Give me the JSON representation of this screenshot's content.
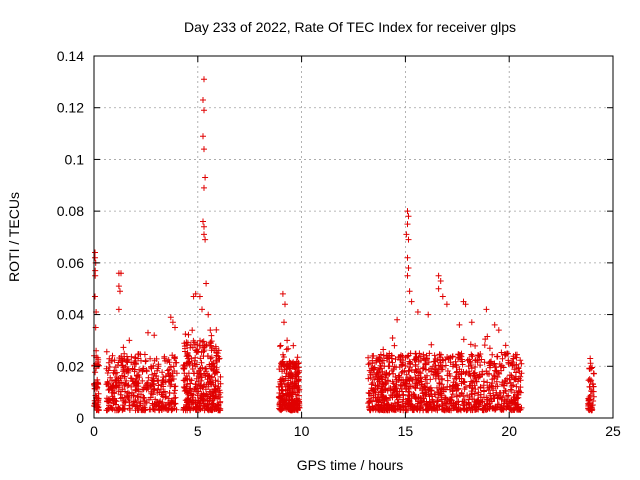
{
  "chart_data": {
    "type": "scatter",
    "title": "Day 233 of 2022, Rate Of TEC Index for receiver glps",
    "xlabel": "GPS time / hours",
    "ylabel": "ROTI / TECUs",
    "xlim": [
      0,
      25
    ],
    "ylim": [
      0,
      0.14
    ],
    "x_ticks": [
      0,
      5,
      10,
      15,
      20,
      25
    ],
    "y_ticks": [
      0,
      0.02,
      0.04,
      0.06,
      0.08,
      0.1,
      0.12,
      0.14
    ],
    "x_tick_labels": [
      "0",
      "5",
      "10",
      "15",
      "20",
      "25"
    ],
    "y_tick_labels": [
      "0",
      "0.02",
      "0.04",
      "0.06",
      "0.08",
      "0.1",
      "0.12",
      "0.14"
    ],
    "grid": true,
    "marker": "+",
    "color": "#e00000",
    "clusters": [
      {
        "x_range": [
          0.0,
          0.25
        ],
        "typical_max": 0.025,
        "n": 60
      },
      {
        "x_range": [
          0.6,
          4.0
        ],
        "typical_max": 0.025,
        "n": 420
      },
      {
        "x_range": [
          4.3,
          6.1
        ],
        "typical_max": 0.03,
        "n": 360
      },
      {
        "x_range": [
          8.9,
          9.9
        ],
        "typical_max": 0.022,
        "n": 260
      },
      {
        "x_range": [
          13.2,
          16.0
        ],
        "typical_max": 0.025,
        "n": 480
      },
      {
        "x_range": [
          16.0,
          20.6
        ],
        "typical_max": 0.025,
        "n": 620
      },
      {
        "x_range": [
          23.8,
          24.1
        ],
        "typical_max": 0.022,
        "n": 50
      }
    ],
    "peaks": [
      {
        "x": 0.05,
        "y": 0.064
      },
      {
        "x": 0.05,
        "y": 0.062
      },
      {
        "x": 0.08,
        "y": 0.06
      },
      {
        "x": 0.06,
        "y": 0.057
      },
      {
        "x": 0.06,
        "y": 0.055
      },
      {
        "x": 0.05,
        "y": 0.047
      },
      {
        "x": 0.1,
        "y": 0.041
      },
      {
        "x": 0.08,
        "y": 0.035
      },
      {
        "x": 0.1,
        "y": 0.026
      },
      {
        "x": 1.2,
        "y": 0.056
      },
      {
        "x": 1.3,
        "y": 0.056
      },
      {
        "x": 1.2,
        "y": 0.051
      },
      {
        "x": 1.25,
        "y": 0.049
      },
      {
        "x": 1.2,
        "y": 0.042
      },
      {
        "x": 1.7,
        "y": 0.03
      },
      {
        "x": 2.6,
        "y": 0.033
      },
      {
        "x": 2.9,
        "y": 0.032
      },
      {
        "x": 3.7,
        "y": 0.039
      },
      {
        "x": 3.8,
        "y": 0.037
      },
      {
        "x": 3.9,
        "y": 0.035
      },
      {
        "x": 4.8,
        "y": 0.047
      },
      {
        "x": 4.9,
        "y": 0.048
      },
      {
        "x": 5.1,
        "y": 0.047
      },
      {
        "x": 5.2,
        "y": 0.042
      },
      {
        "x": 5.3,
        "y": 0.131
      },
      {
        "x": 5.25,
        "y": 0.123
      },
      {
        "x": 5.3,
        "y": 0.119
      },
      {
        "x": 5.25,
        "y": 0.109
      },
      {
        "x": 5.3,
        "y": 0.104
      },
      {
        "x": 5.35,
        "y": 0.093
      },
      {
        "x": 5.3,
        "y": 0.089
      },
      {
        "x": 5.25,
        "y": 0.076
      },
      {
        "x": 5.3,
        "y": 0.074
      },
      {
        "x": 5.3,
        "y": 0.071
      },
      {
        "x": 5.35,
        "y": 0.069
      },
      {
        "x": 5.4,
        "y": 0.052
      },
      {
        "x": 5.5,
        "y": 0.04
      },
      {
        "x": 5.6,
        "y": 0.034
      },
      {
        "x": 9.1,
        "y": 0.048
      },
      {
        "x": 9.2,
        "y": 0.044
      },
      {
        "x": 9.15,
        "y": 0.037
      },
      {
        "x": 9.3,
        "y": 0.03
      },
      {
        "x": 9.6,
        "y": 0.028
      },
      {
        "x": 15.1,
        "y": 0.08
      },
      {
        "x": 15.15,
        "y": 0.078
      },
      {
        "x": 15.1,
        "y": 0.075
      },
      {
        "x": 15.05,
        "y": 0.071
      },
      {
        "x": 15.15,
        "y": 0.069
      },
      {
        "x": 15.1,
        "y": 0.062
      },
      {
        "x": 15.15,
        "y": 0.058
      },
      {
        "x": 15.1,
        "y": 0.055
      },
      {
        "x": 15.2,
        "y": 0.049
      },
      {
        "x": 15.3,
        "y": 0.045
      },
      {
        "x": 15.6,
        "y": 0.041
      },
      {
        "x": 14.6,
        "y": 0.038
      },
      {
        "x": 16.6,
        "y": 0.055
      },
      {
        "x": 16.7,
        "y": 0.053
      },
      {
        "x": 16.6,
        "y": 0.05
      },
      {
        "x": 16.8,
        "y": 0.047
      },
      {
        "x": 17.0,
        "y": 0.044
      },
      {
        "x": 16.1,
        "y": 0.04
      },
      {
        "x": 17.8,
        "y": 0.045
      },
      {
        "x": 17.9,
        "y": 0.044
      },
      {
        "x": 18.2,
        "y": 0.037
      },
      {
        "x": 17.6,
        "y": 0.036
      },
      {
        "x": 18.9,
        "y": 0.042
      },
      {
        "x": 19.3,
        "y": 0.036
      },
      {
        "x": 19.5,
        "y": 0.034
      },
      {
        "x": 19.9,
        "y": 0.025
      },
      {
        "x": 20.2,
        "y": 0.023
      },
      {
        "x": 23.9,
        "y": 0.023
      }
    ]
  }
}
